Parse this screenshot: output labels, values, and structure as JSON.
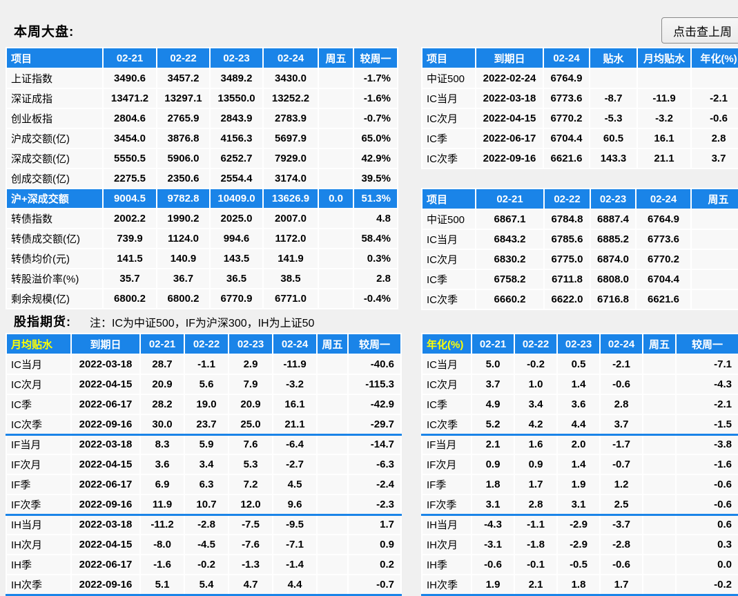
{
  "header": {
    "title": "本周大盘:",
    "button_label": "点击查上周"
  },
  "futures": {
    "title": "股指期货:",
    "note": "注：IC为中证500，IF为沪深300，IH为上证50"
  },
  "colors": {
    "header_blue": "#1a84e8",
    "accent_yellow": "#ffff00"
  },
  "tables": {
    "market": {
      "headers": [
        "项目",
        "02-21",
        "02-22",
        "02-23",
        "02-24",
        "周五",
        "较周一"
      ],
      "highlight_rows": [
        6
      ],
      "rows": [
        [
          "上证指数",
          "3490.6",
          "3457.2",
          "3489.2",
          "3430.0",
          "",
          "-1.7%"
        ],
        [
          "深证成指",
          "13471.2",
          "13297.1",
          "13550.0",
          "13252.2",
          "",
          "-1.6%"
        ],
        [
          "创业板指",
          "2804.6",
          "2765.9",
          "2843.9",
          "2783.9",
          "",
          "-0.7%"
        ],
        [
          "沪成交额(亿)",
          "3454.0",
          "3876.8",
          "4156.3",
          "5697.9",
          "",
          "65.0%"
        ],
        [
          "深成交额(亿)",
          "5550.5",
          "5906.0",
          "6252.7",
          "7929.0",
          "",
          "42.9%"
        ],
        [
          "创成交额(亿)",
          "2275.5",
          "2350.6",
          "2554.4",
          "3174.0",
          "",
          "39.5%"
        ],
        [
          "沪+深成交额",
          "9004.5",
          "9782.8",
          "10409.0",
          "13626.9",
          "0.0",
          "51.3%"
        ],
        [
          "转债指数",
          "2002.2",
          "1990.2",
          "2025.0",
          "2007.0",
          "",
          "4.8"
        ],
        [
          "转债成交额(亿)",
          "739.9",
          "1124.0",
          "994.6",
          "1172.0",
          "",
          "58.4%"
        ],
        [
          "转债均价(元)",
          "141.5",
          "140.9",
          "143.5",
          "141.9",
          "",
          "0.3%"
        ],
        [
          "转股溢价率(%)",
          "35.7",
          "36.7",
          "36.5",
          "38.5",
          "",
          "2.8"
        ],
        [
          "剩余规模(亿)",
          "6800.2",
          "6800.2",
          "6770.9",
          "6771.0",
          "",
          "-0.4%"
        ]
      ]
    },
    "basis": {
      "headers": [
        "项目",
        "到期日",
        "02-24",
        "贴水",
        "月均贴水",
        "年化(%)"
      ],
      "rows": [
        [
          "中证500",
          "2022-02-24",
          "6764.9",
          "",
          "",
          ""
        ],
        [
          "IC当月",
          "2022-03-18",
          "6773.6",
          "-8.7",
          "-11.9",
          "-2.1"
        ],
        [
          "IC次月",
          "2022-04-15",
          "6770.2",
          "-5.3",
          "-3.2",
          "-0.6"
        ],
        [
          "IC季",
          "2022-06-17",
          "6704.4",
          "60.5",
          "16.1",
          "2.8"
        ],
        [
          "IC次季",
          "2022-09-16",
          "6621.6",
          "143.3",
          "21.1",
          "3.7"
        ]
      ]
    },
    "prices": {
      "headers": [
        "项目",
        "02-21",
        "02-22",
        "02-23",
        "02-24",
        "周五"
      ],
      "rows": [
        [
          "中证500",
          "6867.1",
          "6784.8",
          "6887.4",
          "6764.9",
          ""
        ],
        [
          "IC当月",
          "6843.2",
          "6785.6",
          "6885.2",
          "6773.6",
          ""
        ],
        [
          "IC次月",
          "6830.2",
          "6775.0",
          "6874.0",
          "6770.2",
          ""
        ],
        [
          "IC季",
          "6758.2",
          "6711.8",
          "6808.0",
          "6704.4",
          ""
        ],
        [
          "IC次季",
          "6660.2",
          "6622.0",
          "6716.8",
          "6621.6",
          ""
        ]
      ]
    },
    "monthly_basis": {
      "headers": [
        "月均贴水",
        "到期日",
        "02-21",
        "02-22",
        "02-23",
        "02-24",
        "周五",
        "较周一"
      ],
      "accent_first_header": true,
      "divider_after": [
        3,
        7,
        11
      ],
      "rows": [
        [
          "IC当月",
          "2022-03-18",
          "28.7",
          "-1.1",
          "2.9",
          "-11.9",
          "",
          "-40.6"
        ],
        [
          "IC次月",
          "2022-04-15",
          "20.9",
          "5.6",
          "7.9",
          "-3.2",
          "",
          "-115.3"
        ],
        [
          "IC季",
          "2022-06-17",
          "28.2",
          "19.0",
          "20.9",
          "16.1",
          "",
          "-42.9"
        ],
        [
          "IC次季",
          "2022-09-16",
          "30.0",
          "23.7",
          "25.0",
          "21.1",
          "",
          "-29.7"
        ],
        [
          "IF当月",
          "2022-03-18",
          "8.3",
          "5.9",
          "7.6",
          "-6.4",
          "",
          "-14.7"
        ],
        [
          "IF次月",
          "2022-04-15",
          "3.6",
          "3.4",
          "5.3",
          "-2.7",
          "",
          "-6.3"
        ],
        [
          "IF季",
          "2022-06-17",
          "6.9",
          "6.3",
          "7.2",
          "4.5",
          "",
          "-2.4"
        ],
        [
          "IF次季",
          "2022-09-16",
          "11.9",
          "10.7",
          "12.0",
          "9.6",
          "",
          "-2.3"
        ],
        [
          "IH当月",
          "2022-03-18",
          "-11.2",
          "-2.8",
          "-7.5",
          "-9.5",
          "",
          "1.7"
        ],
        [
          "IH次月",
          "2022-04-15",
          "-8.0",
          "-4.5",
          "-7.6",
          "-7.1",
          "",
          "0.9"
        ],
        [
          "IH季",
          "2022-06-17",
          "-1.6",
          "-0.2",
          "-1.3",
          "-1.4",
          "",
          "0.2"
        ],
        [
          "IH次季",
          "2022-09-16",
          "5.1",
          "5.4",
          "4.7",
          "4.4",
          "",
          "-0.7"
        ]
      ]
    },
    "annualized": {
      "headers": [
        "年化(%)",
        "02-21",
        "02-22",
        "02-23",
        "02-24",
        "周五",
        "较周一"
      ],
      "accent_first_header": true,
      "divider_after": [
        3,
        7,
        11
      ],
      "rows": [
        [
          "IC当月",
          "5.0",
          "-0.2",
          "0.5",
          "-2.1",
          "",
          "-7.1"
        ],
        [
          "IC次月",
          "3.7",
          "1.0",
          "1.4",
          "-0.6",
          "",
          "-4.3"
        ],
        [
          "IC季",
          "4.9",
          "3.4",
          "3.6",
          "2.8",
          "",
          "-2.1"
        ],
        [
          "IC次季",
          "5.2",
          "4.2",
          "4.4",
          "3.7",
          "",
          "-1.5"
        ],
        [
          "IF当月",
          "2.1",
          "1.6",
          "2.0",
          "-1.7",
          "",
          "-3.8"
        ],
        [
          "IF次月",
          "0.9",
          "0.9",
          "1.4",
          "-0.7",
          "",
          "-1.6"
        ],
        [
          "IF季",
          "1.8",
          "1.7",
          "1.9",
          "1.2",
          "",
          "-0.6"
        ],
        [
          "IF次季",
          "3.1",
          "2.8",
          "3.1",
          "2.5",
          "",
          "-0.6"
        ],
        [
          "IH当月",
          "-4.3",
          "-1.1",
          "-2.9",
          "-3.7",
          "",
          "0.6"
        ],
        [
          "IH次月",
          "-3.1",
          "-1.8",
          "-2.9",
          "-2.8",
          "",
          "0.3"
        ],
        [
          "IH季",
          "-0.6",
          "-0.1",
          "-0.5",
          "-0.6",
          "",
          "0.0"
        ],
        [
          "IH次季",
          "1.9",
          "2.1",
          "1.8",
          "1.7",
          "",
          "-0.2"
        ]
      ]
    }
  }
}
